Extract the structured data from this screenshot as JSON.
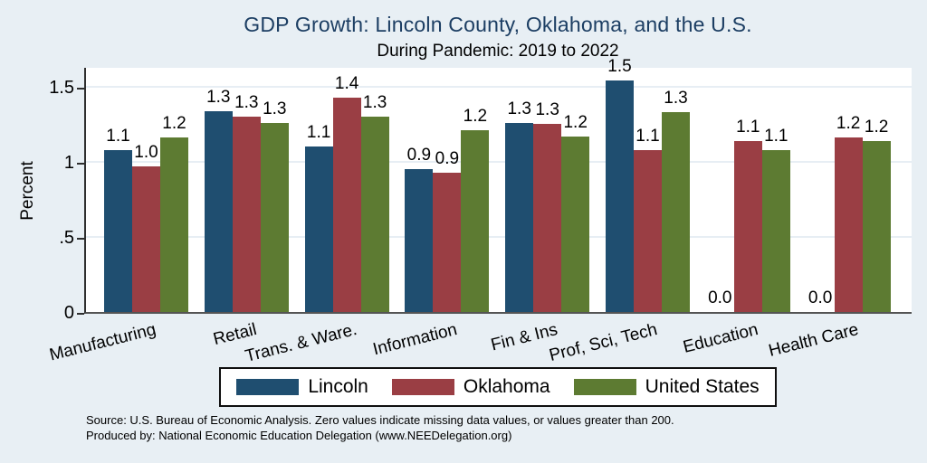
{
  "header": {
    "title": "GDP Growth: Lincoln County, Oklahoma, and the U.S.",
    "subtitle": "During Pandemic: 2019 to 2022"
  },
  "colors": {
    "background": "#e8eff4",
    "plot_background": "#ffffff",
    "title_text": "#1c3e63",
    "axis_line": "#2f2f2f",
    "gridline": "#e7eef4",
    "lincoln": "#1f4e70",
    "oklahoma": "#9a3e44",
    "united_states": "#5d7b32"
  },
  "footnote": {
    "line1": "Source: U.S. Bureau of Economic Analysis. Zero values indicate missing data values, or values greater than 200.",
    "line2": "Produced by: National Economic Education Delegation (www.NEEDelegation.org)"
  },
  "chart_data": {
    "type": "bar",
    "title": "GDP Growth: Lincoln County, Oklahoma, and the U.S.",
    "subtitle": "During Pandemic: 2019 to 2022",
    "xlabel": "",
    "ylabel": "Percent",
    "ylim": [
      0,
      1.64
    ],
    "grid": true,
    "legend_position": "bottom",
    "categories": [
      "Manufacturing",
      "Retail",
      "Trans. & Ware.",
      "Information",
      "Fin & Ins",
      "Prof, Sci, Tech",
      "Education",
      "Health Care"
    ],
    "yticks": [
      {
        "value": 0,
        "label": "0"
      },
      {
        "value": 0.5,
        "label": ".5"
      },
      {
        "value": 1,
        "label": "1"
      },
      {
        "value": 1.5,
        "label": "1.5"
      }
    ],
    "series": [
      {
        "name": "Lincoln",
        "color": "#1f4e70",
        "values": [
          1.1,
          1.3,
          1.1,
          0.9,
          1.3,
          1.5,
          0.0,
          0.0
        ],
        "labels": [
          "1.1",
          "1.3",
          "1.1",
          "0.9",
          "1.3",
          "1.5",
          "0.0",
          "0.0"
        ],
        "draw_values": [
          1.08,
          1.34,
          1.1,
          0.95,
          1.26,
          1.54,
          0,
          0
        ]
      },
      {
        "name": "Oklahoma",
        "color": "#9a3e44",
        "values": [
          1.0,
          1.3,
          1.4,
          0.9,
          1.3,
          1.1,
          1.1,
          1.2
        ],
        "labels": [
          "1.0",
          "1.3",
          "1.4",
          "0.9",
          "1.3",
          "1.1",
          "1.1",
          "1.2"
        ],
        "draw_values": [
          0.97,
          1.3,
          1.43,
          0.93,
          1.25,
          1.08,
          1.14,
          1.16
        ]
      },
      {
        "name": "United States",
        "color": "#5d7b32",
        "values": [
          1.2,
          1.3,
          1.3,
          1.2,
          1.2,
          1.3,
          1.1,
          1.2
        ],
        "labels": [
          "1.2",
          "1.3",
          "1.3",
          "1.2",
          "1.2",
          "1.3",
          "1.1",
          "1.2"
        ],
        "draw_values": [
          1.16,
          1.26,
          1.3,
          1.21,
          1.17,
          1.33,
          1.08,
          1.14
        ]
      }
    ]
  }
}
